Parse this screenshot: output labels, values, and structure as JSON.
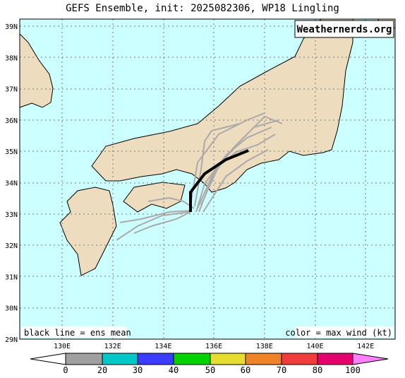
{
  "title": "GEFS Ensemble, init: 2025082306, WP18 Lingling",
  "watermark": "Weathernerds.org",
  "map": {
    "lat_ticks": [
      "29N",
      "30N",
      "31N",
      "32N",
      "33N",
      "34N",
      "35N",
      "36N",
      "37N",
      "38N",
      "39N"
    ],
    "lon_ticks": [
      "130E",
      "132E",
      "134E",
      "136E",
      "138E",
      "140E",
      "142E"
    ]
  },
  "notes": {
    "mean": "black line = ens mean",
    "color": "color = max wind (kt)"
  },
  "colorbar": {
    "labels": [
      "0",
      "20",
      "30",
      "40",
      "50",
      "60",
      "70",
      "80",
      "100"
    ]
  }
}
